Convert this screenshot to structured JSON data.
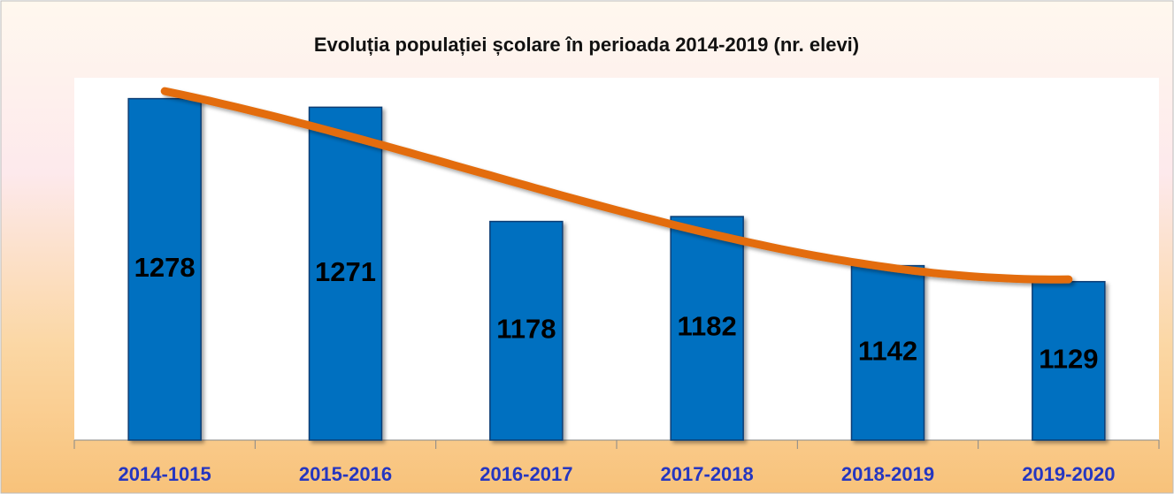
{
  "chart_data": {
    "type": "bar",
    "title": "Evoluția populației școlare în perioada 2014-2019 (nr. elevi)",
    "categories": [
      "2014-1015",
      "2015-2016",
      "2016-2017",
      "2017-2018",
      "2018-2019",
      "2019-2020"
    ],
    "values": [
      1278,
      1271,
      1178,
      1182,
      1142,
      1129
    ],
    "color": "#0070c0",
    "ylim": [
      1000,
      1295
    ],
    "trendline": {
      "type": "polynomial",
      "order": 3,
      "color": "#e36c09"
    }
  }
}
